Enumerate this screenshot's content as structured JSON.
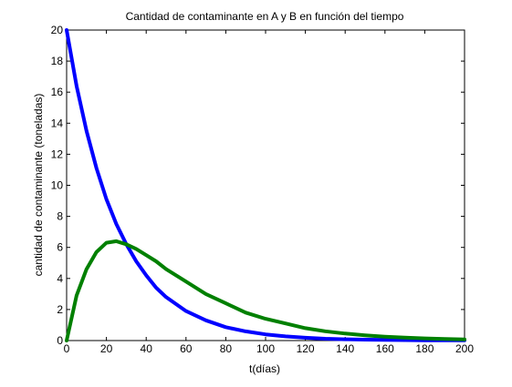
{
  "chart_data": {
    "type": "line",
    "title": "Cantidad de contaminante en A y B en función del tiempo",
    "xlabel": "t(días)",
    "ylabel": "cantidad de contaminante (toneladas)",
    "xlim": [
      0,
      200
    ],
    "ylim": [
      0,
      20
    ],
    "x_ticks": [
      0,
      20,
      40,
      60,
      80,
      100,
      120,
      140,
      160,
      180,
      200
    ],
    "y_ticks": [
      0,
      2,
      4,
      6,
      8,
      10,
      12,
      14,
      16,
      18,
      20
    ],
    "grid": false,
    "legend": "none",
    "x": [
      0,
      5,
      10,
      15,
      20,
      25,
      30,
      35,
      40,
      45,
      50,
      60,
      70,
      80,
      90,
      100,
      110,
      120,
      130,
      140,
      150,
      160,
      170,
      180,
      190,
      200
    ],
    "series": [
      {
        "color": "#0000ff",
        "values": [
          20.0,
          16.4,
          13.5,
          11.1,
          9.1,
          7.5,
          6.2,
          5.1,
          4.2,
          3.4,
          2.8,
          1.9,
          1.3,
          0.86,
          0.59,
          0.4,
          0.27,
          0.18,
          0.12,
          0.08,
          0.06,
          0.04,
          0.03,
          0.02,
          0.01,
          0.01
        ]
      },
      {
        "color": "#008000",
        "values": [
          0.0,
          2.9,
          4.6,
          5.7,
          6.3,
          6.4,
          6.2,
          5.9,
          5.5,
          5.1,
          4.6,
          3.8,
          3.0,
          2.4,
          1.8,
          1.4,
          1.1,
          0.8,
          0.6,
          0.45,
          0.34,
          0.25,
          0.19,
          0.14,
          0.1,
          0.07
        ]
      }
    ]
  }
}
